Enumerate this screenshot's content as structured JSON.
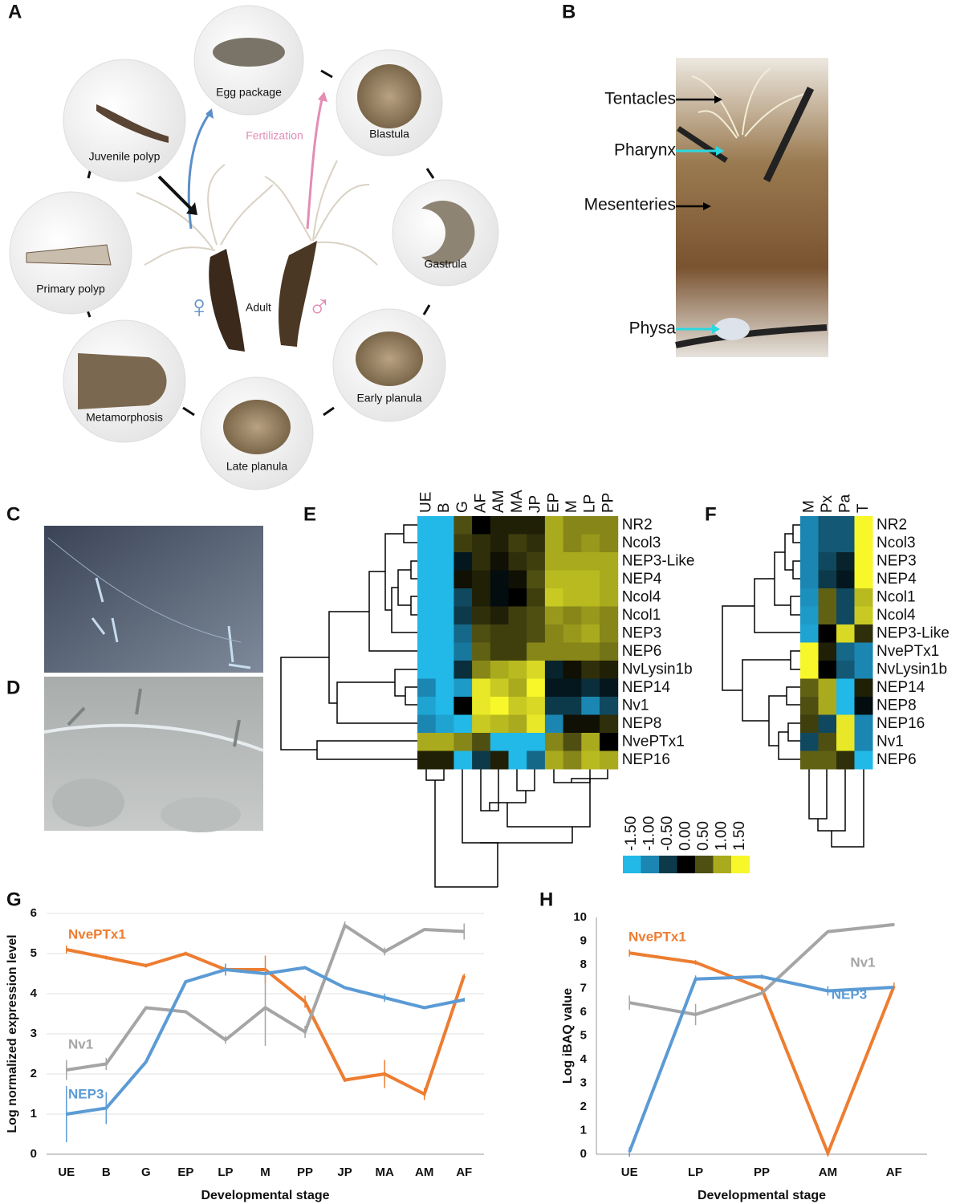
{
  "panels": {
    "A": "A",
    "B": "B",
    "C": "C",
    "D": "D",
    "E": "E",
    "F": "F",
    "G": "G",
    "H": "H"
  },
  "life_cycle": {
    "stages": [
      "Egg package",
      "Blastula",
      "Gastrula",
      "Early planula",
      "Late planula",
      "Metamorphosis",
      "Primary polyp",
      "Juvenile polyp"
    ],
    "adult": "Adult",
    "fertilization": "Fertilization",
    "female": "♀",
    "male": "♂"
  },
  "anatomy": {
    "labels": [
      "Tentacles",
      "Pharynx",
      "Mesenteries",
      "Physa"
    ]
  },
  "colorscale": {
    "ticks": [
      {
        "value": -1.5,
        "label": "-1.50"
      },
      {
        "value": -1.0,
        "label": "-1.00"
      },
      {
        "value": -0.5,
        "label": "-0.50"
      },
      {
        "value": 0,
        "label": "0.00"
      },
      {
        "value": 0.5,
        "label": "0.50"
      },
      {
        "value": 1.0,
        "label": "1.00"
      },
      {
        "value": 1.5,
        "label": "1.50"
      }
    ],
    "colors": [
      "#22b8e8",
      "#1b86b2",
      "#0d3a4a",
      "#000000",
      "#4f4f12",
      "#aaaa1e",
      "#f7f72a"
    ]
  },
  "heatmap_e": {
    "columns": [
      "UE",
      "B",
      "G",
      "AF",
      "AM",
      "MA",
      "JP",
      "EP",
      "M",
      "LP",
      "PP"
    ],
    "rows": [
      "NR2",
      "Ncol3",
      "NEP3-Like",
      "NEP4",
      "Ncol4",
      "Ncol1",
      "NEP3",
      "NEP6",
      "NvLysin1b",
      "NEP14",
      "Nv1",
      "NEP8",
      "NvePTx1",
      "NEP16"
    ],
    "values": [
      [
        -1.5,
        -1.5,
        0.5,
        0,
        0.2,
        0.2,
        0.2,
        1.0,
        0.8,
        0.8,
        0.8
      ],
      [
        -1.5,
        -1.5,
        0.4,
        0.3,
        0.2,
        0.4,
        0.3,
        1.0,
        0.8,
        0.9,
        0.8
      ],
      [
        -1.5,
        -1.5,
        -0.2,
        0.3,
        0.1,
        0.3,
        0.4,
        1.0,
        1.0,
        1.0,
        1.0
      ],
      [
        -1.5,
        -1.5,
        0.1,
        0.2,
        -0.1,
        0.1,
        0.5,
        1.1,
        1.1,
        1.1,
        1.0
      ],
      [
        -1.5,
        -1.5,
        -0.6,
        0.2,
        -0.1,
        0,
        0.4,
        1.2,
        1.1,
        1.1,
        1.0
      ],
      [
        -1.5,
        -1.5,
        -0.5,
        0.3,
        0.2,
        0.4,
        0.5,
        0.9,
        0.8,
        0.9,
        0.8
      ],
      [
        -1.5,
        -1.5,
        -0.8,
        0.5,
        0.4,
        0.4,
        0.5,
        0.8,
        0.9,
        1.0,
        0.8
      ],
      [
        -1.5,
        -1.5,
        -0.9,
        0.6,
        0.4,
        0.4,
        0.8,
        0.8,
        0.8,
        0.8,
        0.7
      ],
      [
        -1.5,
        -1.5,
        -0.4,
        0.8,
        1.0,
        1.1,
        1.3,
        -0.3,
        0.1,
        0.3,
        0.2
      ],
      [
        -1.0,
        -1.5,
        -1.2,
        1.4,
        1.2,
        1.0,
        1.5,
        -0.2,
        -0.2,
        -0.4,
        -0.2
      ],
      [
        -1.3,
        -1.5,
        0,
        1.4,
        1.5,
        1.2,
        1.3,
        -0.5,
        -0.5,
        -1.0,
        -0.6
      ],
      [
        -1.0,
        -1.3,
        -1.5,
        1.2,
        1.1,
        1.0,
        1.4,
        -1.0,
        0.1,
        0.1,
        0.3
      ],
      [
        1.0,
        1.0,
        0.8,
        0.5,
        -1.5,
        -1.5,
        -1.5,
        0.8,
        0.5,
        1.0,
        0
      ],
      [
        0.2,
        0.2,
        -1.5,
        -0.5,
        0.2,
        -1.5,
        -0.8,
        1.0,
        0.8,
        1.1,
        1.0
      ]
    ]
  },
  "heatmap_f": {
    "columns": [
      "M",
      "Px",
      "Pa",
      "T"
    ],
    "rows": [
      "NR2",
      "Ncol3",
      "NEP3",
      "NEP4",
      "Ncol1",
      "Ncol4",
      "NEP3-Like",
      "NvePTx1",
      "NvLysin1b",
      "NEP14",
      "NEP8",
      "NEP16",
      "Nv1",
      "NEP6"
    ],
    "values": [
      [
        -1.0,
        -0.7,
        -0.7,
        1.5
      ],
      [
        -1.0,
        -0.7,
        -0.7,
        1.5
      ],
      [
        -1.0,
        -0.6,
        -0.3,
        1.5
      ],
      [
        -1.0,
        -0.5,
        -0.2,
        1.5
      ],
      [
        -1.1,
        0.6,
        -0.6,
        1.1
      ],
      [
        -1.2,
        0.6,
        -0.6,
        1.2
      ],
      [
        -1.3,
        0,
        1.3,
        0.3
      ],
      [
        1.5,
        0.2,
        -0.8,
        -1.0
      ],
      [
        1.5,
        0,
        -0.7,
        -1.0
      ],
      [
        0.6,
        1.0,
        -1.5,
        0.2
      ],
      [
        0.5,
        1.0,
        -1.5,
        -0.1
      ],
      [
        0.4,
        -0.6,
        1.4,
        -1.0
      ],
      [
        -0.6,
        0.5,
        1.4,
        -1.0
      ],
      [
        0.6,
        0.6,
        0.3,
        -1.5
      ]
    ]
  },
  "chart_data": [
    {
      "type": "line",
      "ylabel": "Log normalized expression level",
      "xlabel": "Developmental stage",
      "categories": [
        "UE",
        "B",
        "G",
        "EP",
        "LP",
        "M",
        "PP",
        "JP",
        "MA",
        "AM",
        "AF"
      ],
      "ylim": [
        0,
        6
      ],
      "yticks": [
        0,
        1,
        2,
        3,
        4,
        5,
        6
      ],
      "grid": true,
      "series": [
        {
          "name": "NvePTx1",
          "color": "#ed7d31",
          "values": [
            5.1,
            4.9,
            4.7,
            5.0,
            4.6,
            4.6,
            3.8,
            1.85,
            2.0,
            1.5,
            4.45
          ],
          "errors": [
            0.1,
            0.05,
            0.05,
            0.05,
            0.1,
            0.35,
            0.15,
            0.05,
            0.35,
            0.15,
            0.05
          ]
        },
        {
          "name": "Nv1",
          "color": "#a5a5a5",
          "values": [
            2.1,
            2.25,
            3.65,
            3.55,
            2.85,
            3.65,
            3.05,
            5.7,
            5.05,
            5.6,
            5.55
          ],
          "errors": [
            0.25,
            0.15,
            0,
            0,
            0.1,
            0.95,
            0.15,
            0.1,
            0.1,
            0,
            0.2
          ]
        },
        {
          "name": "NEP3",
          "color": "#5b9bd5",
          "values": [
            1.0,
            1.15,
            2.3,
            4.3,
            4.6,
            4.5,
            4.65,
            4.15,
            3.9,
            3.65,
            3.85
          ],
          "errors": [
            0.7,
            0.4,
            0,
            0,
            0.15,
            0,
            0,
            0,
            0.1,
            0,
            0.05
          ]
        }
      ]
    },
    {
      "type": "line",
      "ylabel": "Log iBAQ value",
      "xlabel": "Developmental stage",
      "categories": [
        "UE",
        "LP",
        "PP",
        "AM",
        "AF"
      ],
      "ylim": [
        0,
        10
      ],
      "yticks": [
        0,
        1,
        2,
        3,
        4,
        5,
        6,
        7,
        8,
        9,
        10
      ],
      "grid": false,
      "series": [
        {
          "name": "NvePTx1",
          "color": "#ed7d31",
          "values": [
            8.5,
            8.1,
            7.0,
            0.05,
            7.1
          ],
          "errors": [
            0.15,
            0.1,
            0,
            0,
            0.15
          ]
        },
        {
          "name": "Nv1",
          "color": "#a5a5a5",
          "values": [
            6.4,
            5.9,
            6.8,
            9.4,
            9.7
          ],
          "errors": [
            0.3,
            0.45,
            0,
            0.05,
            0.05
          ]
        },
        {
          "name": "NEP3",
          "color": "#5b9bd5",
          "values": [
            0.1,
            7.4,
            7.5,
            6.9,
            7.05
          ],
          "errors": [
            0.2,
            0.15,
            0.1,
            0.2,
            0
          ]
        }
      ]
    }
  ]
}
